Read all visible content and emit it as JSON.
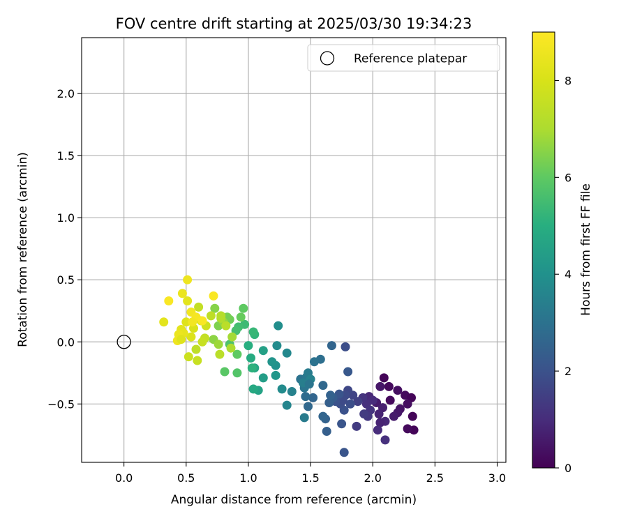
{
  "chart_data": {
    "type": "scatter",
    "title": "FOV centre drift starting at 2025/03/30 19:34:23",
    "xlabel": "Angular distance from reference (arcmin)",
    "ylabel": "Rotation from reference (arcmin)",
    "xlim": [
      -0.34,
      3.07
    ],
    "ylim": [
      -0.97,
      2.45
    ],
    "xticks": [
      0.0,
      0.5,
      1.0,
      1.5,
      2.0,
      2.5,
      3.0
    ],
    "xtick_labels": [
      "0.0",
      "0.5",
      "1.0",
      "1.5",
      "2.0",
      "2.5",
      "3.0"
    ],
    "yticks": [
      -0.5,
      0.0,
      0.5,
      1.0,
      1.5,
      2.0
    ],
    "ytick_labels": [
      "−0.5",
      "0.0",
      "0.5",
      "1.0",
      "1.5",
      "2.0"
    ],
    "grid": true,
    "legend": {
      "position": "top-right",
      "entries": [
        "Reference platepar"
      ]
    },
    "reference_point": {
      "x": 0.0,
      "y": 0.0
    },
    "colorbar": {
      "label": "Hours from first FF file",
      "colormap": "viridis",
      "range": [
        0,
        9
      ],
      "ticks": [
        0,
        2,
        4,
        6,
        8
      ],
      "tick_labels": [
        "0",
        "2",
        "4",
        "6",
        "8"
      ]
    },
    "points_columns": [
      "x",
      "y",
      "hours"
    ],
    "points": [
      [
        2.09,
        -0.29,
        0.1
      ],
      [
        2.13,
        -0.36,
        0.2
      ],
      [
        2.2,
        -0.39,
        0.3
      ],
      [
        2.26,
        -0.43,
        0.2
      ],
      [
        2.31,
        -0.45,
        0.1
      ],
      [
        2.28,
        -0.5,
        0.3
      ],
      [
        2.14,
        -0.47,
        0.2
      ],
      [
        2.32,
        -0.6,
        0.1
      ],
      [
        2.33,
        -0.71,
        0.1
      ],
      [
        2.28,
        -0.7,
        0.2
      ],
      [
        2.22,
        -0.54,
        0.4
      ],
      [
        2.2,
        -0.57,
        0.5
      ],
      [
        2.17,
        -0.6,
        0.6
      ],
      [
        2.06,
        -0.36,
        0.5
      ],
      [
        2.03,
        -0.49,
        0.6
      ],
      [
        2.08,
        -0.53,
        0.7
      ],
      [
        2.05,
        -0.58,
        0.8
      ],
      [
        2.1,
        -0.64,
        0.9
      ],
      [
        2.06,
        -0.65,
        0.8
      ],
      [
        2.04,
        -0.71,
        1.0
      ],
      [
        2.1,
        -0.79,
        1.1
      ],
      [
        1.97,
        -0.44,
        0.9
      ],
      [
        2.0,
        -0.47,
        1.0
      ],
      [
        1.95,
        -0.5,
        1.1
      ],
      [
        1.92,
        -0.45,
        1.2
      ],
      [
        1.98,
        -0.55,
        1.2
      ],
      [
        1.96,
        -0.6,
        1.3
      ],
      [
        1.93,
        -0.58,
        1.4
      ],
      [
        1.87,
        -0.68,
        1.4
      ],
      [
        1.88,
        -0.48,
        1.5
      ],
      [
        1.84,
        -0.43,
        1.6
      ],
      [
        1.8,
        -0.39,
        1.7
      ],
      [
        1.78,
        -0.43,
        1.8
      ],
      [
        1.82,
        -0.5,
        1.9
      ],
      [
        1.77,
        -0.55,
        2.0
      ],
      [
        1.74,
        -0.5,
        1.9
      ],
      [
        1.76,
        -0.47,
        1.8
      ],
      [
        1.7,
        -0.48,
        2.0
      ],
      [
        1.75,
        -0.66,
        2.1
      ],
      [
        1.77,
        -0.89,
        2.1
      ],
      [
        1.8,
        -0.24,
        2.2
      ],
      [
        1.78,
        -0.04,
        1.9
      ],
      [
        1.73,
        -0.42,
        2.1
      ],
      [
        1.68,
        -0.45,
        2.3
      ],
      [
        1.65,
        -0.49,
        2.4
      ],
      [
        1.62,
        -0.62,
        2.5
      ],
      [
        1.63,
        -0.72,
        2.4
      ],
      [
        1.6,
        -0.6,
        2.6
      ],
      [
        1.6,
        -0.35,
        2.7
      ],
      [
        1.58,
        -0.14,
        2.9
      ],
      [
        1.53,
        -0.16,
        3.0
      ],
      [
        1.67,
        -0.03,
        2.6
      ],
      [
        1.66,
        -0.43,
        2.5
      ],
      [
        1.52,
        -0.45,
        2.6
      ],
      [
        1.48,
        -0.52,
        2.7
      ],
      [
        1.46,
        -0.44,
        2.8
      ],
      [
        1.42,
        -0.3,
        3.0
      ],
      [
        1.45,
        -0.37,
        3.1
      ],
      [
        1.47,
        -0.28,
        3.2
      ],
      [
        1.48,
        -0.25,
        3.3
      ],
      [
        1.44,
        -0.33,
        3.4
      ],
      [
        1.5,
        -0.3,
        3.5
      ],
      [
        1.49,
        -0.34,
        3.1
      ],
      [
        1.45,
        -0.61,
        3.3
      ],
      [
        1.35,
        -0.4,
        3.5
      ],
      [
        1.31,
        -0.51,
        3.6
      ],
      [
        1.27,
        -0.38,
        3.8
      ],
      [
        1.31,
        -0.09,
        3.7
      ],
      [
        1.23,
        -0.03,
        3.8
      ],
      [
        1.24,
        0.13,
        3.9
      ],
      [
        1.22,
        -0.19,
        4.0
      ],
      [
        1.19,
        -0.16,
        4.1
      ],
      [
        1.22,
        -0.27,
        4.2
      ],
      [
        1.12,
        -0.29,
        4.4
      ],
      [
        1.12,
        -0.07,
        4.5
      ],
      [
        1.08,
        -0.39,
        4.6
      ],
      [
        1.05,
        -0.21,
        4.7
      ],
      [
        1.04,
        -0.38,
        4.8
      ],
      [
        1.02,
        -0.13,
        4.9
      ],
      [
        1.0,
        -0.03,
        5.0
      ],
      [
        1.03,
        -0.21,
        5.1
      ],
      [
        1.05,
        0.06,
        5.2
      ],
      [
        1.04,
        0.08,
        5.3
      ],
      [
        0.97,
        0.14,
        5.4
      ],
      [
        0.92,
        0.12,
        5.5
      ],
      [
        0.9,
        0.09,
        5.6
      ],
      [
        0.85,
        -0.02,
        5.7
      ],
      [
        0.91,
        -0.25,
        5.8
      ],
      [
        0.81,
        -0.24,
        5.9
      ],
      [
        0.91,
        -0.1,
        6.0
      ],
      [
        0.96,
        0.27,
        6.0
      ],
      [
        0.94,
        0.2,
        6.1
      ],
      [
        0.85,
        0.18,
        6.2
      ],
      [
        0.83,
        0.2,
        6.3
      ],
      [
        0.76,
        0.13,
        6.4
      ],
      [
        0.73,
        0.27,
        6.5
      ],
      [
        0.72,
        0.02,
        6.6
      ],
      [
        0.8,
        0.16,
        6.7
      ],
      [
        0.76,
        -0.02,
        6.8
      ],
      [
        0.87,
        0.04,
        6.9
      ],
      [
        0.86,
        -0.05,
        7.0
      ],
      [
        0.78,
        0.19,
        7.1
      ],
      [
        0.78,
        0.21,
        7.2
      ],
      [
        0.82,
        0.13,
        7.3
      ],
      [
        0.7,
        0.21,
        7.4
      ],
      [
        0.65,
        0.03,
        7.5
      ],
      [
        0.63,
        0.0,
        7.6
      ],
      [
        0.58,
        -0.06,
        7.4
      ],
      [
        0.6,
        0.28,
        7.5
      ],
      [
        0.77,
        -0.1,
        7.3
      ],
      [
        0.59,
        -0.15,
        7.6
      ],
      [
        0.52,
        -0.12,
        7.7
      ],
      [
        0.66,
        0.13,
        7.8
      ],
      [
        0.62,
        0.17,
        7.9
      ],
      [
        0.56,
        0.11,
        8.0
      ],
      [
        0.54,
        0.04,
        8.1
      ],
      [
        0.5,
        0.16,
        8.2
      ],
      [
        0.46,
        0.1,
        8.3
      ],
      [
        0.48,
        0.07,
        8.4
      ],
      [
        0.44,
        0.06,
        8.5
      ],
      [
        0.43,
        0.01,
        8.6
      ],
      [
        0.46,
        0.02,
        8.2
      ],
      [
        0.51,
        0.33,
        8.3
      ],
      [
        0.47,
        0.39,
        8.5
      ],
      [
        0.51,
        0.5,
        8.6
      ],
      [
        0.54,
        0.24,
        8.7
      ],
      [
        0.58,
        0.2,
        8.8
      ],
      [
        0.63,
        0.17,
        8.9
      ],
      [
        0.72,
        0.37,
        8.9
      ],
      [
        0.36,
        0.33,
        8.9
      ],
      [
        0.32,
        0.16,
        8.3
      ],
      [
        0.55,
        0.16,
        8.7
      ]
    ]
  }
}
